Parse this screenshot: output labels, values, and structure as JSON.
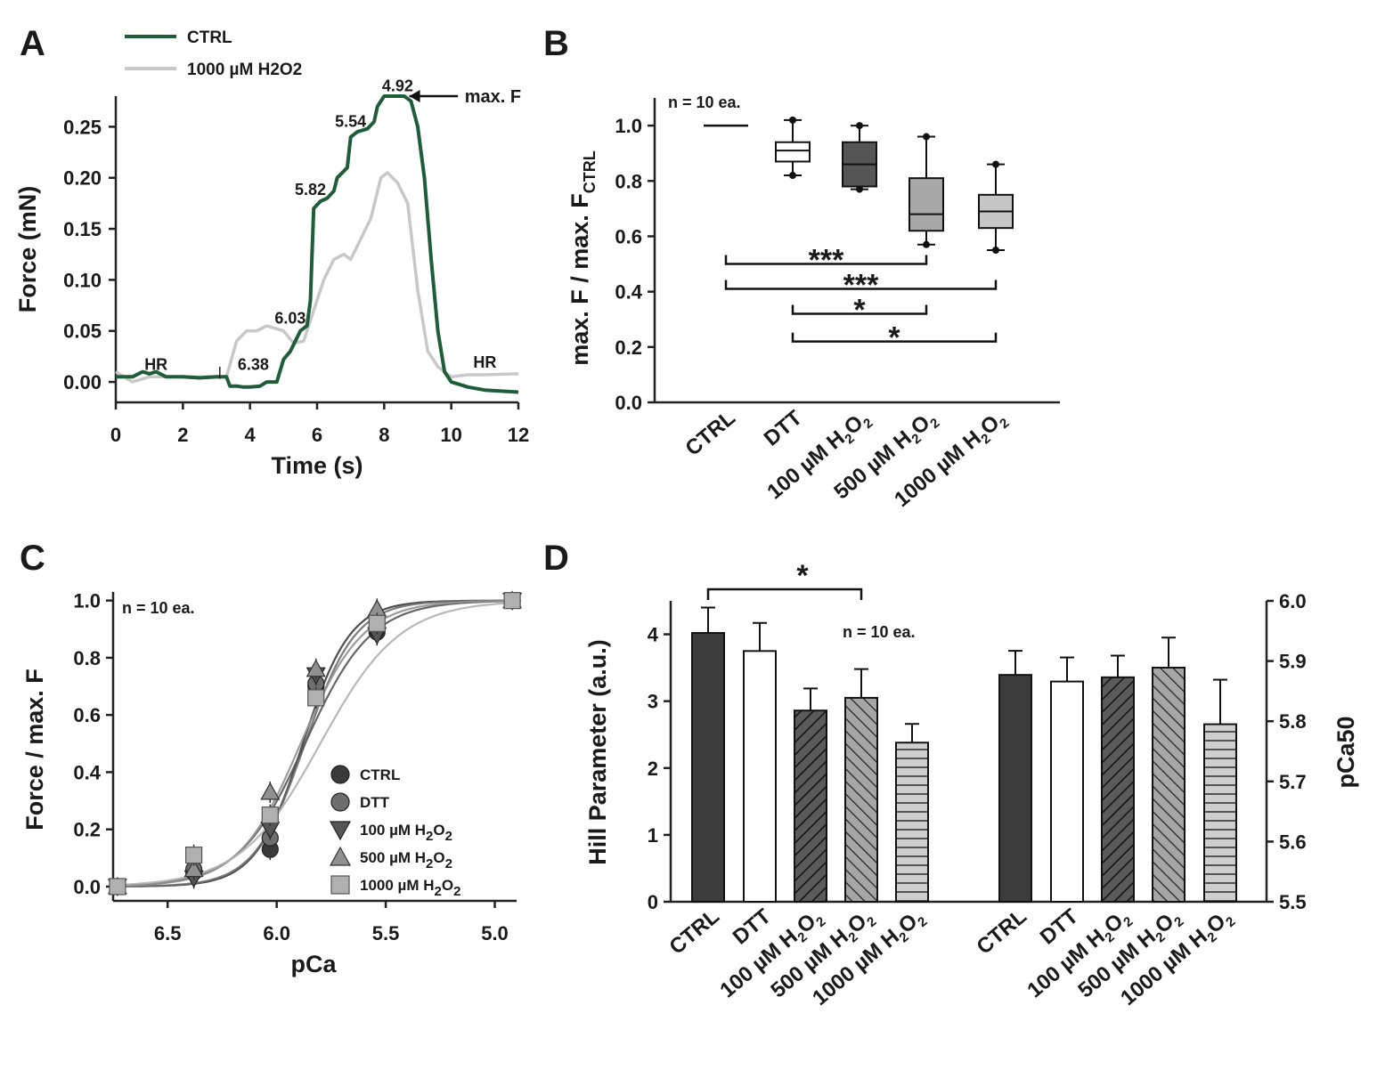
{
  "chart_data": [
    {
      "panel": "A",
      "type": "line",
      "title": "",
      "xlabel": "Time (s)",
      "ylabel": "Force (mN)",
      "xlim": [
        0,
        12
      ],
      "ylim": [
        -0.02,
        0.28
      ],
      "xticks": [
        "0",
        "2",
        "4",
        "6",
        "8",
        "10",
        "12"
      ],
      "yticks": [
        "0.00",
        "0.05",
        "0.10",
        "0.15",
        "0.20",
        "0.25"
      ],
      "legend": [
        "CTRL",
        "1000 µM H2O2"
      ],
      "series": [
        {
          "name": "CTRL",
          "color": "#1e5c3a",
          "x": [
            0,
            0.5,
            0.8,
            1.0,
            1.2,
            1.5,
            2.0,
            2.5,
            3.0,
            3.3,
            3.4,
            3.6,
            3.8,
            4.0,
            4.3,
            4.5,
            4.8,
            5.0,
            5.2,
            5.5,
            5.7,
            5.8,
            5.9,
            6.1,
            6.3,
            6.5,
            6.6,
            6.9,
            7.0,
            7.2,
            7.5,
            7.7,
            7.8,
            8.0,
            8.3,
            8.6,
            8.8,
            9.0,
            9.2,
            9.4,
            9.6,
            9.8,
            10.0,
            10.5,
            11,
            12
          ],
          "y": [
            0.005,
            0.005,
            0.01,
            0.008,
            0.01,
            0.005,
            0.005,
            0.004,
            0.005,
            0.005,
            -0.004,
            -0.004,
            -0.005,
            -0.005,
            -0.004,
            0,
            0,
            0.022,
            0.03,
            0.05,
            0.055,
            0.08,
            0.17,
            0.177,
            0.18,
            0.187,
            0.2,
            0.21,
            0.24,
            0.245,
            0.248,
            0.255,
            0.27,
            0.28,
            0.28,
            0.28,
            0.275,
            0.25,
            0.2,
            0.12,
            0.05,
            0.01,
            0,
            -0.005,
            -0.008,
            -0.01
          ]
        },
        {
          "name": "1000 µM H2O2",
          "color": "#c8c8c8",
          "x": [
            0,
            0.5,
            1.0,
            1.5,
            2.0,
            2.5,
            3.0,
            3.3,
            3.6,
            3.9,
            4.2,
            4.5,
            4.8,
            5.0,
            5.3,
            5.6,
            5.9,
            6.2,
            6.5,
            6.8,
            7.0,
            7.3,
            7.6,
            7.9,
            8.1,
            8.4,
            8.7,
            9.0,
            9.3,
            9.6,
            9.8,
            10.0,
            10.5,
            11,
            12
          ],
          "y": [
            0.01,
            0,
            0.005,
            0.005,
            0.005,
            0.005,
            0.005,
            0.005,
            0.04,
            0.05,
            0.05,
            0.055,
            0.052,
            0.05,
            0.038,
            0.04,
            0.07,
            0.1,
            0.12,
            0.125,
            0.12,
            0.14,
            0.16,
            0.2,
            0.205,
            0.195,
            0.175,
            0.09,
            0.03,
            0.015,
            0.01,
            0.005,
            0.007,
            0.007,
            0.008
          ]
        }
      ],
      "annotations": [
        {
          "text": "HR",
          "x": 1.2,
          "y": 0.012
        },
        {
          "text": "6.38",
          "x": 4.1,
          "y": 0.012
        },
        {
          "text": "6.03",
          "x": 5.2,
          "y": 0.057
        },
        {
          "text": "5.82",
          "x": 5.8,
          "y": 0.183
        },
        {
          "text": "5.54",
          "x": 7.0,
          "y": 0.25
        },
        {
          "text": "4.92",
          "x": 8.4,
          "y": 0.285
        },
        {
          "text": "max. F",
          "x": 10.6,
          "y": 0.28
        },
        {
          "text": "HR",
          "x": 11.0,
          "y": 0.014
        }
      ]
    },
    {
      "panel": "B",
      "type": "box",
      "xlabel": "",
      "ylabel": "max. F / max. F",
      "ylabel_sub": "CTRL",
      "ylim": [
        0,
        1.1
      ],
      "yticks": [
        "0.0",
        "0.2",
        "0.4",
        "0.6",
        "0.8",
        "1.0"
      ],
      "note": "n = 10 ea.",
      "categories": [
        "CTRL",
        "DTT",
        "100 µM H₂O₂",
        "500 µM H₂O₂",
        "1000 µM H₂O₂"
      ],
      "boxes": [
        {
          "name": "CTRL",
          "min": 1.0,
          "q1": 1.0,
          "median": 1.0,
          "q3": 1.0,
          "max": 1.0,
          "color": "#ffffff"
        },
        {
          "name": "DTT",
          "min": 0.82,
          "q1": 0.87,
          "median": 0.91,
          "q3": 0.94,
          "max": 1.02,
          "color": "#ffffff"
        },
        {
          "name": "100 µM H₂O₂",
          "min": 0.77,
          "q1": 0.78,
          "median": 0.86,
          "q3": 0.94,
          "max": 1.0,
          "color": "#555555"
        },
        {
          "name": "500 µM H₂O₂",
          "min": 0.57,
          "q1": 0.62,
          "median": 0.68,
          "q3": 0.81,
          "max": 0.96,
          "color": "#a8a8a8"
        },
        {
          "name": "1000 µM H₂O₂",
          "min": 0.55,
          "q1": 0.63,
          "median": 0.69,
          "q3": 0.75,
          "max": 0.86,
          "color": "#c6c6c6"
        }
      ],
      "significance": [
        {
          "from": 0,
          "to": 3,
          "label": "***",
          "y": 0.5
        },
        {
          "from": 0,
          "to": 4,
          "label": "***",
          "y": 0.41
        },
        {
          "from": 1,
          "to": 3,
          "label": "*",
          "y": 0.32
        },
        {
          "from": 1,
          "to": 4,
          "label": "*",
          "y": 0.22
        }
      ]
    },
    {
      "panel": "C",
      "type": "scatter",
      "xlabel": "pCa",
      "ylabel": "Force / max. F",
      "xlim": [
        6.75,
        4.9
      ],
      "ylim": [
        -0.05,
        1.03
      ],
      "xticks": [
        "6.5",
        "6.0",
        "5.5",
        "5.0"
      ],
      "yticks": [
        "0.0",
        "0.2",
        "0.4",
        "0.6",
        "0.8",
        "1.0"
      ],
      "note": "n = 10 ea.",
      "x": [
        6.73,
        6.38,
        6.03,
        5.82,
        5.54,
        4.92
      ],
      "series": [
        {
          "name": "CTRL",
          "marker": "circle",
          "color": "#3a3a3a",
          "values": [
            0,
            0.05,
            0.13,
            0.7,
            0.89,
            1.0
          ],
          "pca50": 5.88,
          "hill": 4.02
        },
        {
          "name": "DTT",
          "marker": "circle",
          "color": "#6e6e6e",
          "values": [
            0,
            0.06,
            0.17,
            0.71,
            0.9,
            1.0
          ],
          "pca50": 5.87,
          "hill": 3.75
        },
        {
          "name": "100 µM H₂O₂",
          "marker": "triangle-down",
          "color": "#555555",
          "values": [
            0,
            0.03,
            0.2,
            0.74,
            0.88,
            1.0
          ],
          "pca50": 5.87,
          "hill": 2.86
        },
        {
          "name": "500 µM H₂O₂",
          "marker": "triangle-up",
          "color": "#909090",
          "values": [
            0,
            0.06,
            0.33,
            0.76,
            0.97,
            1.0
          ],
          "pca50": 5.89,
          "hill": 3.05
        },
        {
          "name": "1000 µM H₂O₂",
          "marker": "square",
          "color": "#b0b0b0",
          "values": [
            0,
            0.11,
            0.25,
            0.66,
            0.92,
            1.0
          ],
          "pca50": 5.8,
          "hill": 2.38
        }
      ]
    },
    {
      "panel": "D",
      "type": "bar",
      "ylabel": "Hill Parameter (a.u.)",
      "y2label": "pCa50",
      "ylim": [
        0,
        4.5
      ],
      "y2lim": [
        5.5,
        6.0
      ],
      "yticks": [
        "0",
        "1",
        "2",
        "3",
        "4"
      ],
      "y2ticks": [
        "5.5",
        "5.6",
        "5.7",
        "5.8",
        "5.9",
        "6.0"
      ],
      "note": "n = 10 ea.",
      "significance": [
        {
          "from": 0,
          "to": 3,
          "label": "*"
        }
      ],
      "categories": [
        "CTRL",
        "DTT",
        "100 µM H₂O₂",
        "500 µM H₂O₂",
        "1000 µM H₂O₂"
      ],
      "series": [
        {
          "name": "Hill Parameter",
          "axis": "left",
          "values": [
            4.02,
            3.75,
            2.86,
            3.05,
            2.38
          ],
          "errors": [
            0.38,
            0.42,
            0.33,
            0.43,
            0.28
          ]
        },
        {
          "name": "pCa50",
          "axis": "right",
          "values": [
            5.877,
            5.866,
            5.873,
            5.889,
            5.795
          ],
          "errors": [
            0.04,
            0.04,
            0.036,
            0.05,
            0.074
          ]
        }
      ]
    }
  ]
}
